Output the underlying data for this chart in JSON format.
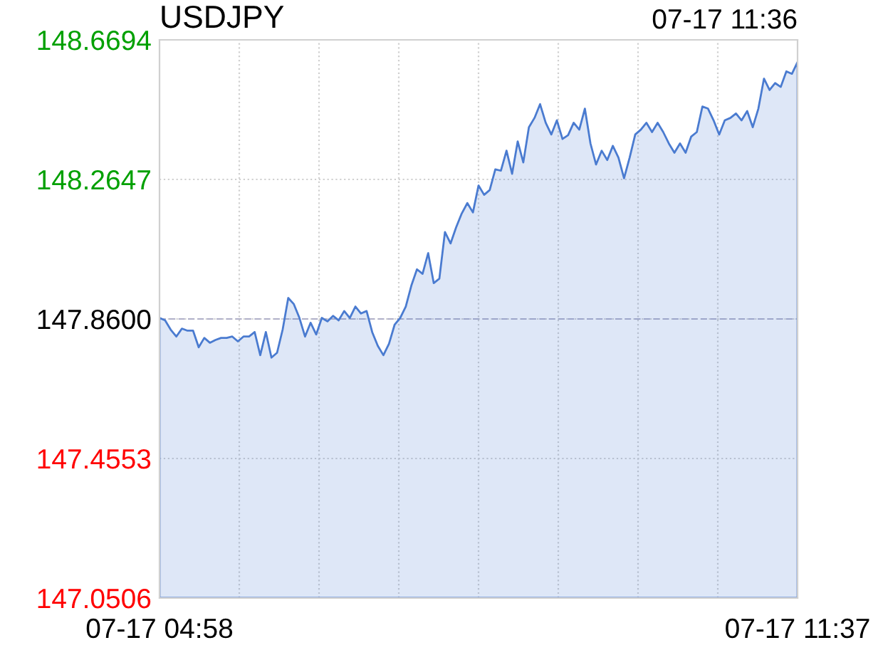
{
  "chart_data": {
    "type": "area",
    "title": "USDJPY",
    "subtitle": "07-17 11:36",
    "categories": [
      "07-17 04:58",
      null,
      null,
      null,
      null,
      null,
      null,
      null,
      null,
      null,
      null,
      null,
      null,
      null,
      null,
      null,
      null,
      null,
      null,
      null,
      null,
      null,
      null,
      null,
      null,
      null,
      null,
      null,
      null,
      null,
      null,
      null,
      null,
      null,
      null,
      null,
      null,
      null,
      null,
      null,
      null,
      null,
      null,
      null,
      null,
      null,
      null,
      null,
      null,
      null,
      null,
      null,
      null,
      null,
      null,
      null,
      null,
      null,
      null,
      null,
      null,
      null,
      null,
      null,
      null,
      null,
      null,
      null,
      null,
      null,
      null,
      null,
      null,
      null,
      null,
      null,
      null,
      null,
      null,
      null,
      null,
      null,
      null,
      null,
      null,
      null,
      null,
      null,
      null,
      null,
      null,
      null,
      null,
      null,
      null,
      null,
      null,
      null,
      null,
      null,
      null,
      null,
      null,
      null,
      null,
      null,
      null,
      null,
      null,
      null,
      null,
      null,
      null,
      null,
      "07-17 11:37"
    ],
    "series": [
      {
        "color": "#4a7bd0",
        "values": [
          147.863,
          147.856,
          147.829,
          147.809,
          147.832,
          147.826,
          147.826,
          147.778,
          147.805,
          147.791,
          147.799,
          147.805,
          147.805,
          147.809,
          147.795,
          147.809,
          147.809,
          147.822,
          147.755,
          147.822,
          147.748,
          147.762,
          147.829,
          147.921,
          147.903,
          147.863,
          147.809,
          147.849,
          147.815,
          147.863,
          147.853,
          147.869,
          147.856,
          147.883,
          147.863,
          147.896,
          147.876,
          147.883,
          147.822,
          147.782,
          147.755,
          147.788,
          147.843,
          147.863,
          147.896,
          147.957,
          148.004,
          147.991,
          148.051,
          147.964,
          147.977,
          148.112,
          148.079,
          148.126,
          148.166,
          148.196,
          148.169,
          148.247,
          148.22,
          148.234,
          148.294,
          148.29,
          148.348,
          148.281,
          148.375,
          148.314,
          148.416,
          148.443,
          148.483,
          148.429,
          148.395,
          148.436,
          148.382,
          148.393,
          148.429,
          148.409,
          148.47,
          148.369,
          148.308,
          148.348,
          148.321,
          148.362,
          148.328,
          148.268,
          148.328,
          148.395,
          148.409,
          148.429,
          148.402,
          148.429,
          148.402,
          148.369,
          148.342,
          148.369,
          148.342,
          148.389,
          148.402,
          148.476,
          148.47,
          148.436,
          148.395,
          148.436,
          148.443,
          148.456,
          148.436,
          148.463,
          148.416,
          148.47,
          148.557,
          148.524,
          148.544,
          148.533,
          148.578,
          148.571,
          148.605
        ]
      }
    ],
    "ylim": [
      147.0506,
      148.6694
    ],
    "yticks": [
      {
        "value": 147.0506,
        "label": "147.0506"
      },
      {
        "value": 147.4553,
        "label": "147.4553"
      },
      {
        "value": 147.86,
        "label": "147.8600"
      },
      {
        "value": 148.2647,
        "label": "148.2647"
      },
      {
        "value": 148.6694,
        "label": "148.6694"
      }
    ],
    "ref_lines": [
      {
        "axis": "y",
        "value": 147.86,
        "color": "#b0b0c8",
        "line_style": "dashed"
      }
    ],
    "grid": true,
    "legend": false
  }
}
